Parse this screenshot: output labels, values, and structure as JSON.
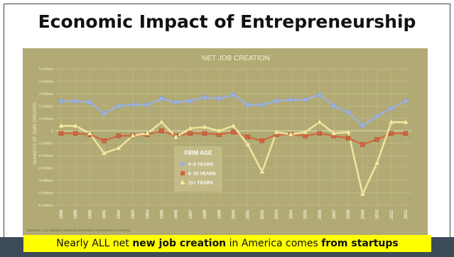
{
  "slide": {
    "title": "Economic Impact of Entrepreneurship",
    "source": "SOURCE: U.S. CENSUS BUREAU BUSINESS DYNAMICS STATISTICS",
    "caption_parts": [
      "Nearly ALL net ",
      "new job creation",
      " in America comes ",
      "from startups"
    ]
  },
  "colors": {
    "plot_bg": "#b1aa74",
    "grid": "#c9c390",
    "series": [
      "#9ab2e6",
      "#d2663e",
      "#f8f0a4"
    ]
  },
  "chart_data": {
    "type": "line",
    "title": "NET JOB CREATION",
    "xlabel": "",
    "ylabel": "NUMBERS OF JOBS CREATED",
    "x": [
      "1988",
      "1989",
      "1990",
      "1991",
      "1992",
      "1993",
      "1994",
      "1995",
      "1996",
      "1997",
      "1998",
      "1999",
      "2000",
      "2001",
      "2002",
      "2003",
      "2004",
      "2005",
      "2006",
      "2007",
      "2008",
      "2009",
      "2010",
      "2011",
      "2012"
    ],
    "yticks": [
      {
        "v": 5,
        "label": "5 million"
      },
      {
        "v": 4,
        "label": "4 million"
      },
      {
        "v": 3,
        "label": "3 million"
      },
      {
        "v": 2,
        "label": "2 million"
      },
      {
        "v": 1,
        "label": "1 million"
      },
      {
        "v": 0,
        "label": "0"
      },
      {
        "v": -1,
        "label": "-1 million"
      },
      {
        "v": -2,
        "label": "-2 million"
      },
      {
        "v": -3,
        "label": "-3 million"
      },
      {
        "v": -4,
        "label": "-4 million"
      },
      {
        "v": -5,
        "label": "-5 million"
      },
      {
        "v": -6,
        "label": "-6 million"
      }
    ],
    "ylim": [
      -6,
      5
    ],
    "legend_title": "FIRM AGE",
    "legend_position": "center-left",
    "series": [
      {
        "name": "0–5 YEARS",
        "marker": "circle",
        "values": [
          2.4,
          2.4,
          2.3,
          1.4,
          2.0,
          2.1,
          2.1,
          2.6,
          2.3,
          2.4,
          2.7,
          2.6,
          2.9,
          2.1,
          2.1,
          2.4,
          2.5,
          2.5,
          2.9,
          2.0,
          1.5,
          0.4,
          1.2,
          1.8,
          2.4
        ]
      },
      {
        "name": "6–10 YEARS",
        "marker": "square",
        "values": [
          -0.2,
          -0.2,
          -0.3,
          -0.8,
          -0.4,
          -0.4,
          -0.3,
          0.0,
          -0.4,
          -0.2,
          -0.2,
          -0.3,
          -0.1,
          -0.5,
          -0.8,
          -0.3,
          -0.3,
          -0.4,
          -0.2,
          -0.4,
          -0.6,
          -1.1,
          -0.7,
          -0.2,
          -0.2
        ]
      },
      {
        "name": "11+ YEARS",
        "marker": "triangle",
        "values": [
          0.4,
          0.4,
          -0.2,
          -1.8,
          -1.4,
          -0.4,
          -0.2,
          0.7,
          -0.5,
          0.2,
          0.3,
          0.0,
          0.4,
          -1.1,
          -3.3,
          -0.1,
          -0.3,
          -0.1,
          0.7,
          -0.2,
          -0.1,
          -5.1,
          -2.6,
          0.7,
          0.7
        ]
      }
    ]
  }
}
